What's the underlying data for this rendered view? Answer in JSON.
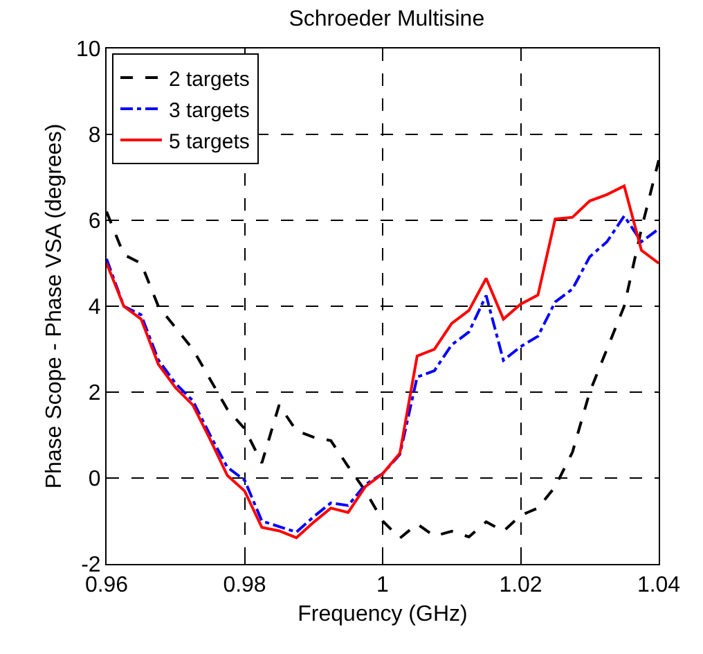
{
  "chart_data": {
    "type": "line",
    "title": "Schroeder Multisine",
    "xlabel": "Frequency (GHz)",
    "ylabel": "Phase Scope - Phase VSA (degrees)",
    "x": [
      0.96,
      0.9625,
      0.965,
      0.9675,
      0.97,
      0.9725,
      0.975,
      0.9775,
      0.98,
      0.9825,
      0.985,
      0.9875,
      0.99,
      0.9925,
      0.995,
      0.9975,
      1.0,
      1.0025,
      1.005,
      1.0075,
      1.01,
      1.0125,
      1.015,
      1.0175,
      1.02,
      1.0225,
      1.025,
      1.0275,
      1.03,
      1.0325,
      1.035,
      1.0375,
      1.04
    ],
    "series": [
      {
        "name": "2 targets",
        "color": "#000000",
        "line_style": "dashed",
        "values": [
          6.2,
          5.2,
          5.0,
          4.0,
          3.5,
          3.0,
          2.3,
          1.6,
          1.15,
          0.35,
          1.7,
          1.1,
          0.95,
          0.87,
          0.27,
          -0.3,
          -1.0,
          -1.4,
          -1.07,
          -1.35,
          -1.24,
          -1.37,
          -1.02,
          -1.24,
          -0.87,
          -0.7,
          -0.2,
          0.6,
          2.0,
          3.0,
          4.0,
          5.8,
          7.4
        ]
      },
      {
        "name": "3 targets",
        "color": "#0000ff",
        "line_style": "dashdot",
        "values": [
          5.1,
          4.0,
          3.8,
          2.75,
          2.2,
          1.8,
          1.0,
          0.25,
          -0.05,
          -1.0,
          -1.13,
          -1.26,
          -0.9,
          -0.58,
          -0.64,
          -0.15,
          0.1,
          0.55,
          2.35,
          2.5,
          3.1,
          3.4,
          4.25,
          2.74,
          3.06,
          3.3,
          4.1,
          4.4,
          5.15,
          5.5,
          6.1,
          5.5,
          5.8
        ]
      },
      {
        "name": "5 targets",
        "color": "#ff0000",
        "line_style": "solid",
        "values": [
          5.0,
          4.0,
          3.7,
          2.65,
          2.1,
          1.7,
          0.9,
          0.06,
          -0.3,
          -1.15,
          -1.23,
          -1.39,
          -1.03,
          -0.7,
          -0.8,
          -0.2,
          0.1,
          0.58,
          2.84,
          3.0,
          3.6,
          3.9,
          4.65,
          3.7,
          4.05,
          4.26,
          6.03,
          6.07,
          6.45,
          6.6,
          6.8,
          5.3,
          5.0
        ]
      }
    ],
    "xlim": [
      0.96,
      1.04
    ],
    "xticks": [
      0.96,
      0.98,
      1,
      1.02,
      1.04
    ],
    "ylim": [
      -2,
      10
    ],
    "yticks": [
      -2,
      0,
      2,
      4,
      6,
      8,
      10
    ],
    "grid": true,
    "legend": "top left",
    "marker": "none"
  }
}
